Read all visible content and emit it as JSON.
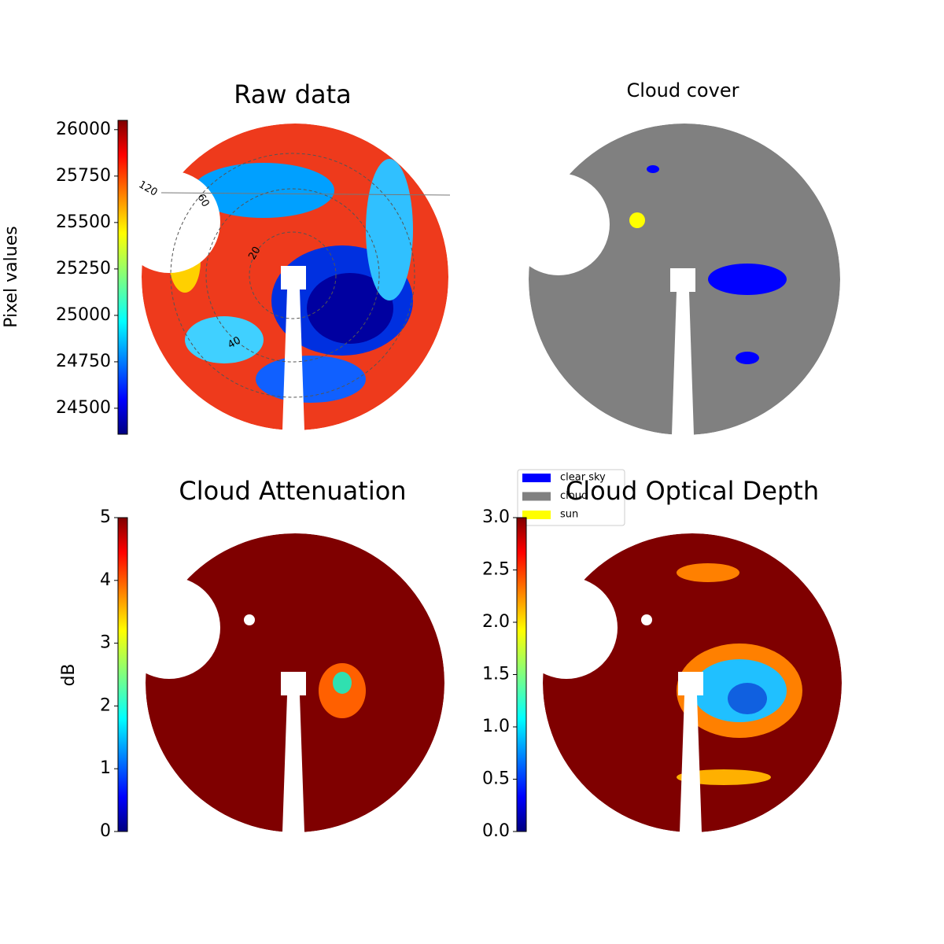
{
  "chart_data": [
    {
      "type": "image",
      "title": "Raw data",
      "colorbar": {
        "label": "Pixel values",
        "lim": [
          24360,
          26050
        ],
        "ticks": [
          24500,
          24750,
          25000,
          25250,
          25500,
          25750,
          26000
        ]
      },
      "annotations": [
        "120",
        "60",
        "20",
        "40"
      ]
    },
    {
      "type": "categorical-image",
      "title": "Cloud cover",
      "legend": [
        {
          "name": "clear sky",
          "color": "#0000ff"
        },
        {
          "name": "cloud",
          "color": "#808080"
        },
        {
          "name": "sun",
          "color": "#ffff00"
        }
      ]
    },
    {
      "type": "image",
      "title": "Cloud Attenuation",
      "colorbar": {
        "label": "dB",
        "lim": [
          0,
          5
        ],
        "ticks": [
          0,
          1,
          2,
          3,
          4,
          5
        ]
      }
    },
    {
      "type": "image",
      "title": "Cloud Optical Depth",
      "colorbar": {
        "lim": [
          0,
          3
        ],
        "ticks": [
          {
            "value": 0,
            "label": "0.0"
          },
          {
            "value": 0.5,
            "label": "0.5"
          },
          {
            "value": 1,
            "label": "1.0"
          },
          {
            "value": 1.5,
            "label": "1.5"
          },
          {
            "value": 2,
            "label": "2.0"
          },
          {
            "value": 2.5,
            "label": "2.5"
          },
          {
            "value": 3,
            "label": "3.0"
          }
        ]
      }
    }
  ]
}
